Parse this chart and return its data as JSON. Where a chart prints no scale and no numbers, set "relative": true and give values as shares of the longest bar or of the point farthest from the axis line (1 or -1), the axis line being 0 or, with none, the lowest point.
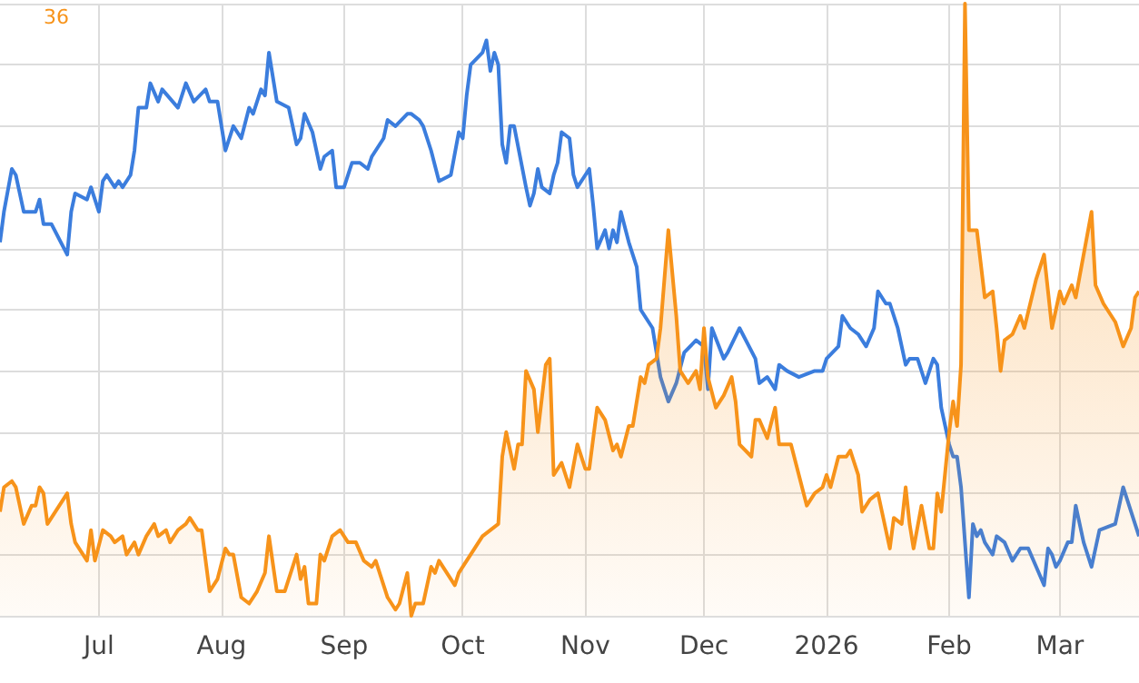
{
  "chart_data": {
    "type": "line",
    "relative": true,
    "grid": true,
    "marker": "none",
    "annotations": [
      "36"
    ],
    "xlim": [
      "2025-06-06",
      "2026-03-21"
    ],
    "xticks": [
      {
        "value": "2025-07-01",
        "label": "Jul"
      },
      {
        "value": "2025-08-01",
        "label": "Aug"
      },
      {
        "value": "2025-09-01",
        "label": "Sep"
      },
      {
        "value": "2025-10-01",
        "label": "Oct"
      },
      {
        "value": "2025-11-01",
        "label": "Nov"
      },
      {
        "value": "2025-12-01",
        "label": "Dec"
      },
      {
        "value": "2026-01-01",
        "label": "2026"
      },
      {
        "value": "2026-02-01",
        "label": "Feb"
      },
      {
        "value": "2026-03-01",
        "label": "Mar"
      }
    ],
    "series": [
      {
        "color": "#3b7ddd",
        "x": [
          "2025-06-06",
          "2025-06-07",
          "2025-06-09",
          "2025-06-10",
          "2025-06-12",
          "2025-06-15",
          "2025-06-16",
          "2025-06-17",
          "2025-06-19",
          "2025-06-23",
          "2025-06-24",
          "2025-06-25",
          "2025-06-28",
          "2025-06-29",
          "2025-07-01",
          "2025-07-02",
          "2025-07-03",
          "2025-07-05",
          "2025-07-06",
          "2025-07-07",
          "2025-07-09",
          "2025-07-10",
          "2025-07-11",
          "2025-07-13",
          "2025-07-14",
          "2025-07-16",
          "2025-07-17",
          "2025-07-21",
          "2025-07-23",
          "2025-07-25",
          "2025-07-28",
          "2025-07-29",
          "2025-07-31",
          "2025-08-02",
          "2025-08-04",
          "2025-08-06",
          "2025-08-08",
          "2025-08-09",
          "2025-08-11",
          "2025-08-12",
          "2025-08-13",
          "2025-08-15",
          "2025-08-18",
          "2025-08-20",
          "2025-08-21",
          "2025-08-22",
          "2025-08-24",
          "2025-08-26",
          "2025-08-27",
          "2025-08-29",
          "2025-08-30",
          "2025-09-01",
          "2025-09-03",
          "2025-09-05",
          "2025-09-07",
          "2025-09-08",
          "2025-09-11",
          "2025-09-12",
          "2025-09-14",
          "2025-09-17",
          "2025-09-18",
          "2025-09-20",
          "2025-09-21",
          "2025-09-23",
          "2025-09-25",
          "2025-09-28",
          "2025-09-30",
          "2025-10-01",
          "2025-10-02",
          "2025-10-03",
          "2025-10-06",
          "2025-10-07",
          "2025-10-08",
          "2025-10-09",
          "2025-10-10",
          "2025-10-11",
          "2025-10-12",
          "2025-10-13",
          "2025-10-14",
          "2025-10-17",
          "2025-10-18",
          "2025-10-19",
          "2025-10-20",
          "2025-10-21",
          "2025-10-23",
          "2025-10-24",
          "2025-10-25",
          "2025-10-26",
          "2025-10-28",
          "2025-10-29",
          "2025-10-30",
          "2025-11-01",
          "2025-11-02",
          "2025-11-03",
          "2025-11-04",
          "2025-11-06",
          "2025-11-07",
          "2025-11-08",
          "2025-11-09",
          "2025-11-10",
          "2025-11-12",
          "2025-11-14",
          "2025-11-15",
          "2025-11-16",
          "2025-11-18",
          "2025-11-20",
          "2025-11-22",
          "2025-11-24",
          "2025-11-26",
          "2025-11-29",
          "2025-12-01",
          "2025-12-02",
          "2025-12-03",
          "2025-12-06",
          "2025-12-07",
          "2025-12-10",
          "2025-12-14",
          "2025-12-15",
          "2025-12-17",
          "2025-12-19",
          "2025-12-20",
          "2025-12-22",
          "2025-12-25",
          "2025-12-29",
          "2025-12-31",
          "2026-01-01",
          "2026-01-04",
          "2026-01-05",
          "2026-01-07",
          "2026-01-09",
          "2026-01-11",
          "2026-01-13",
          "2026-01-14",
          "2026-01-16",
          "2026-01-17",
          "2026-01-19",
          "2026-01-21",
          "2026-01-22",
          "2026-01-24",
          "2026-01-26",
          "2026-01-28",
          "2026-01-29",
          "2026-01-30",
          "2026-02-01",
          "2026-02-02",
          "2026-02-03",
          "2026-02-04",
          "2026-02-06",
          "2026-02-07",
          "2026-02-08",
          "2026-02-09",
          "2026-02-10",
          "2026-02-12",
          "2026-02-13",
          "2026-02-15",
          "2026-02-17",
          "2026-02-19",
          "2026-02-21",
          "2026-02-23",
          "2026-02-25",
          "2026-02-26",
          "2026-02-27",
          "2026-02-28",
          "2026-03-01",
          "2026-03-03",
          "2026-03-04",
          "2026-03-05",
          "2026-03-07",
          "2026-03-09",
          "2026-03-11",
          "2026-03-15",
          "2026-03-17",
          "2026-03-18",
          "2026-03-20",
          "2026-03-21"
        ],
        "values": [
          0.61,
          0.66,
          0.73,
          0.72,
          0.66,
          0.66,
          0.68,
          0.64,
          0.64,
          0.59,
          0.66,
          0.69,
          0.68,
          0.7,
          0.66,
          0.71,
          0.72,
          0.7,
          0.71,
          0.7,
          0.72,
          0.76,
          0.83,
          0.83,
          0.87,
          0.84,
          0.86,
          0.83,
          0.87,
          0.84,
          0.86,
          0.84,
          0.84,
          0.76,
          0.8,
          0.78,
          0.83,
          0.82,
          0.86,
          0.85,
          0.92,
          0.84,
          0.83,
          0.77,
          0.78,
          0.82,
          0.79,
          0.73,
          0.75,
          0.76,
          0.7,
          0.7,
          0.74,
          0.74,
          0.73,
          0.75,
          0.78,
          0.81,
          0.8,
          0.82,
          0.82,
          0.81,
          0.8,
          0.76,
          0.71,
          0.72,
          0.79,
          0.78,
          0.85,
          0.9,
          0.92,
          0.94,
          0.89,
          0.92,
          0.9,
          0.77,
          0.74,
          0.8,
          0.8,
          0.7,
          0.67,
          0.69,
          0.73,
          0.7,
          0.69,
          0.72,
          0.74,
          0.79,
          0.78,
          0.72,
          0.7,
          0.72,
          0.73,
          0.67,
          0.6,
          0.63,
          0.6,
          0.63,
          0.61,
          0.66,
          0.61,
          0.57,
          0.5,
          0.49,
          0.47,
          0.39,
          0.35,
          0.38,
          0.43,
          0.45,
          0.44,
          0.37,
          0.47,
          0.42,
          0.43,
          0.47,
          0.42,
          0.38,
          0.39,
          0.37,
          0.41,
          0.4,
          0.39,
          0.4,
          0.4,
          0.42,
          0.44,
          0.49,
          0.47,
          0.46,
          0.44,
          0.47,
          0.53,
          0.51,
          0.51,
          0.47,
          0.41,
          0.42,
          0.42,
          0.38,
          0.42,
          0.41,
          0.34,
          0.28,
          0.26,
          0.26,
          0.21,
          0.03,
          0.15,
          0.13,
          0.14,
          0.12,
          0.1,
          0.13,
          0.12,
          0.09,
          0.11,
          0.11,
          0.08,
          0.05,
          0.11,
          0.1,
          0.08,
          0.09,
          0.12,
          0.12,
          0.18,
          0.12,
          0.08,
          0.14,
          0.15,
          0.21,
          0.19,
          0.15,
          0.13
        ]
      },
      {
        "type": "area",
        "color": "#f7931a",
        "x": [
          "2025-06-06",
          "2025-06-07",
          "2025-06-09",
          "2025-06-10",
          "2025-06-12",
          "2025-06-14",
          "2025-06-15",
          "2025-06-16",
          "2025-06-17",
          "2025-06-18",
          "2025-06-20",
          "2025-06-23",
          "2025-06-24",
          "2025-06-25",
          "2025-06-28",
          "2025-06-29",
          "2025-06-30",
          "2025-07-02",
          "2025-07-04",
          "2025-07-05",
          "2025-07-07",
          "2025-07-08",
          "2025-07-10",
          "2025-07-11",
          "2025-07-13",
          "2025-07-15",
          "2025-07-16",
          "2025-07-18",
          "2025-07-19",
          "2025-07-21",
          "2025-07-23",
          "2025-07-24",
          "2025-07-26",
          "2025-07-27",
          "2025-07-29",
          "2025-07-31",
          "2025-08-02",
          "2025-08-03",
          "2025-08-04",
          "2025-08-06",
          "2025-08-08",
          "2025-08-10",
          "2025-08-12",
          "2025-08-13",
          "2025-08-15",
          "2025-08-17",
          "2025-08-20",
          "2025-08-21",
          "2025-08-22",
          "2025-08-23",
          "2025-08-25",
          "2025-08-26",
          "2025-08-27",
          "2025-08-29",
          "2025-08-31",
          "2025-09-02",
          "2025-09-04",
          "2025-09-06",
          "2025-09-08",
          "2025-09-09",
          "2025-09-12",
          "2025-09-14",
          "2025-09-15",
          "2025-09-17",
          "2025-09-18",
          "2025-09-19",
          "2025-09-21",
          "2025-09-23",
          "2025-09-24",
          "2025-09-25",
          "2025-09-27",
          "2025-09-29",
          "2025-09-30",
          "2025-10-03",
          "2025-10-06",
          "2025-10-08",
          "2025-10-10",
          "2025-10-11",
          "2025-10-12",
          "2025-10-14",
          "2025-10-15",
          "2025-10-16",
          "2025-10-17",
          "2025-10-19",
          "2025-10-20",
          "2025-10-22",
          "2025-10-23",
          "2025-10-24",
          "2025-10-26",
          "2025-10-28",
          "2025-10-30",
          "2025-11-01",
          "2025-11-02",
          "2025-11-04",
          "2025-11-06",
          "2025-11-08",
          "2025-11-09",
          "2025-11-10",
          "2025-11-12",
          "2025-11-13",
          "2025-11-15",
          "2025-11-16",
          "2025-11-17",
          "2025-11-19",
          "2025-11-20",
          "2025-11-22",
          "2025-11-24",
          "2025-11-25",
          "2025-11-26",
          "2025-11-27",
          "2025-11-29",
          "2025-11-30",
          "2025-12-01",
          "2025-12-02",
          "2025-12-04",
          "2025-12-06",
          "2025-12-08",
          "2025-12-09",
          "2025-12-10",
          "2025-12-13",
          "2025-12-14",
          "2025-12-15",
          "2025-12-17",
          "2025-12-19",
          "2025-12-20",
          "2025-12-23",
          "2025-12-25",
          "2025-12-27",
          "2025-12-29",
          "2025-12-31",
          "2026-01-01",
          "2026-01-02",
          "2026-01-04",
          "2026-01-06",
          "2026-01-07",
          "2026-01-09",
          "2026-01-10",
          "2026-01-12",
          "2026-01-14",
          "2026-01-15",
          "2026-01-17",
          "2026-01-18",
          "2026-01-20",
          "2026-01-21",
          "2026-01-22",
          "2026-01-23",
          "2026-01-25",
          "2026-01-27",
          "2026-01-28",
          "2026-01-29",
          "2026-01-30",
          "2026-02-01",
          "2026-02-02",
          "2026-02-03",
          "2026-02-04",
          "2026-02-05",
          "2026-02-06",
          "2026-02-08",
          "2026-02-10",
          "2026-02-12",
          "2026-02-13",
          "2026-02-14",
          "2026-02-15",
          "2026-02-17",
          "2026-02-19",
          "2026-02-20",
          "2026-02-23",
          "2026-02-25",
          "2026-02-26",
          "2026-02-27",
          "2026-03-01",
          "2026-03-02",
          "2026-03-04",
          "2026-03-05",
          "2026-03-09",
          "2026-03-10",
          "2026-03-12",
          "2026-03-15",
          "2026-03-17",
          "2026-03-19",
          "2026-03-20",
          "2026-03-21"
        ],
        "values": [
          0.17,
          0.21,
          0.22,
          0.21,
          0.15,
          0.18,
          0.18,
          0.21,
          0.2,
          0.15,
          0.17,
          0.2,
          0.15,
          0.12,
          0.09,
          0.14,
          0.09,
          0.14,
          0.13,
          0.12,
          0.13,
          0.1,
          0.12,
          0.1,
          0.13,
          0.15,
          0.13,
          0.14,
          0.12,
          0.14,
          0.15,
          0.16,
          0.14,
          0.14,
          0.04,
          0.06,
          0.11,
          0.1,
          0.1,
          0.03,
          0.02,
          0.04,
          0.07,
          0.13,
          0.04,
          0.04,
          0.1,
          0.06,
          0.08,
          0.02,
          0.02,
          0.1,
          0.09,
          0.13,
          0.14,
          0.12,
          0.12,
          0.09,
          0.08,
          0.09,
          0.03,
          0.01,
          0.02,
          0.07,
          0,
          0.02,
          0.02,
          0.08,
          0.07,
          0.09,
          0.07,
          0.05,
          0.07,
          0.1,
          0.13,
          0.14,
          0.15,
          0.26,
          0.3,
          0.24,
          0.28,
          0.28,
          0.4,
          0.37,
          0.3,
          0.41,
          0.42,
          0.23,
          0.25,
          0.21,
          0.28,
          0.24,
          0.24,
          0.34,
          0.32,
          0.27,
          0.28,
          0.26,
          0.31,
          0.31,
          0.39,
          0.38,
          0.41,
          0.42,
          0.47,
          0.63,
          0.49,
          0.4,
          0.39,
          0.38,
          0.4,
          0.37,
          0.47,
          0.39,
          0.34,
          0.36,
          0.39,
          0.35,
          0.28,
          0.26,
          0.32,
          0.32,
          0.29,
          0.34,
          0.28,
          0.28,
          0.23,
          0.18,
          0.2,
          0.21,
          0.23,
          0.21,
          0.26,
          0.26,
          0.27,
          0.23,
          0.17,
          0.19,
          0.2,
          0.17,
          0.11,
          0.16,
          0.15,
          0.21,
          0.15,
          0.11,
          0.18,
          0.11,
          0.11,
          0.2,
          0.17,
          0.3,
          0.35,
          0.31,
          0.41,
          1,
          0.63,
          0.63,
          0.52,
          0.53,
          0.47,
          0.4,
          0.45,
          0.46,
          0.49,
          0.47,
          0.55,
          0.59,
          0.53,
          0.47,
          0.53,
          0.51,
          0.54,
          0.52,
          0.66,
          0.54,
          0.51,
          0.48,
          0.44,
          0.47,
          0.52,
          0.53
        ]
      }
    ]
  }
}
